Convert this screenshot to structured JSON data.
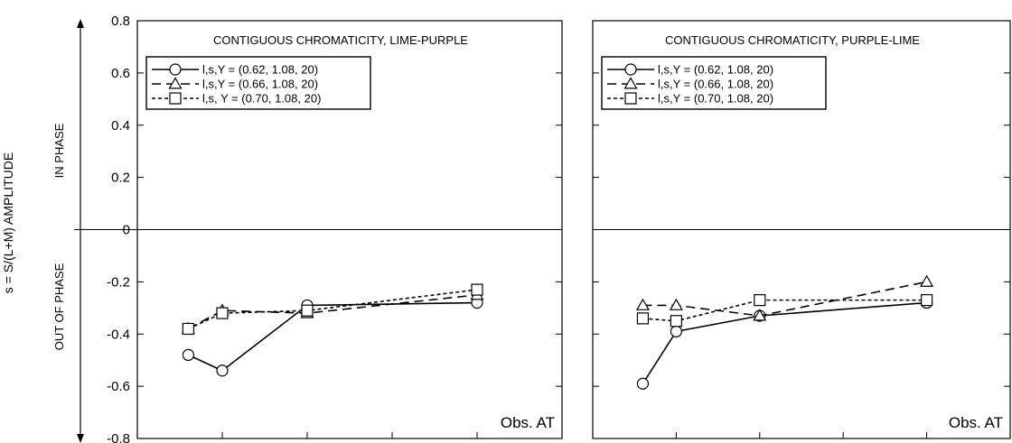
{
  "figure": {
    "ylabel": "s = S/(L+M) AMPLITUDE",
    "in_phase_label": "IN PHASE",
    "out_of_phase_label": "OUT OF PHASE"
  },
  "chart_data": [
    {
      "type": "line",
      "title": "CONTIGUOUS CHROMATICITY, LIME-PURPLE",
      "annotation": "Obs. AT",
      "xlabel": "",
      "ylabel": "s = S/(L+M) AMPLITUDE",
      "ylim": [
        -0.8,
        0.8
      ],
      "yticks": [
        -0.8,
        -0.6,
        -0.4,
        -0.2,
        0,
        0.2,
        0.4,
        0.6,
        0.8
      ],
      "ytick_labels": [
        "-0.8",
        "-0.6",
        "-0.4",
        "-0.2",
        "0",
        "0.2",
        "0.4",
        "0.6",
        "0.8"
      ],
      "xlim": [
        0,
        5
      ],
      "x": [
        0.6,
        1.0,
        2.0,
        4.0
      ],
      "grid": false,
      "legend_position": "top-left",
      "series": [
        {
          "name": "l,s,Y = (0.62, 1.08, 20)",
          "marker": "circle",
          "dash": "solid",
          "values": [
            -0.48,
            -0.54,
            -0.29,
            -0.28
          ]
        },
        {
          "name": "l,s,Y = (0.66, 1.08, 20)",
          "marker": "triangle",
          "dash": "long",
          "values": [
            -0.38,
            -0.31,
            -0.32,
            -0.25
          ]
        },
        {
          "name": "l,s, Y = (0.70, 1.08, 20)",
          "marker": "square",
          "dash": "short",
          "values": [
            -0.38,
            -0.32,
            -0.31,
            -0.23
          ]
        }
      ]
    },
    {
      "type": "line",
      "title": "CONTIGUOUS CHROMATICITY, PURPLE-LIME",
      "annotation": "Obs. AT",
      "xlabel": "",
      "ylabel": "",
      "ylim": [
        -0.8,
        0.8
      ],
      "yticks": [
        -0.8,
        -0.6,
        -0.4,
        -0.2,
        0,
        0.2,
        0.4,
        0.6,
        0.8
      ],
      "xlim": [
        0,
        5
      ],
      "x": [
        0.6,
        1.0,
        2.0,
        4.0
      ],
      "grid": false,
      "legend_position": "top-left",
      "series": [
        {
          "name": "l,s,Y = (0.62, 1.08, 20)",
          "marker": "circle",
          "dash": "solid",
          "values": [
            -0.59,
            -0.39,
            -0.33,
            -0.28
          ]
        },
        {
          "name": "l,s,Y = (0.66, 1.08, 20)",
          "marker": "triangle",
          "dash": "long",
          "values": [
            -0.29,
            -0.29,
            -0.33,
            -0.2
          ]
        },
        {
          "name": "l,s,Y = (0.70, 1.08, 20)",
          "marker": "square",
          "dash": "short",
          "values": [
            -0.34,
            -0.35,
            -0.27,
            -0.27
          ]
        }
      ]
    }
  ]
}
